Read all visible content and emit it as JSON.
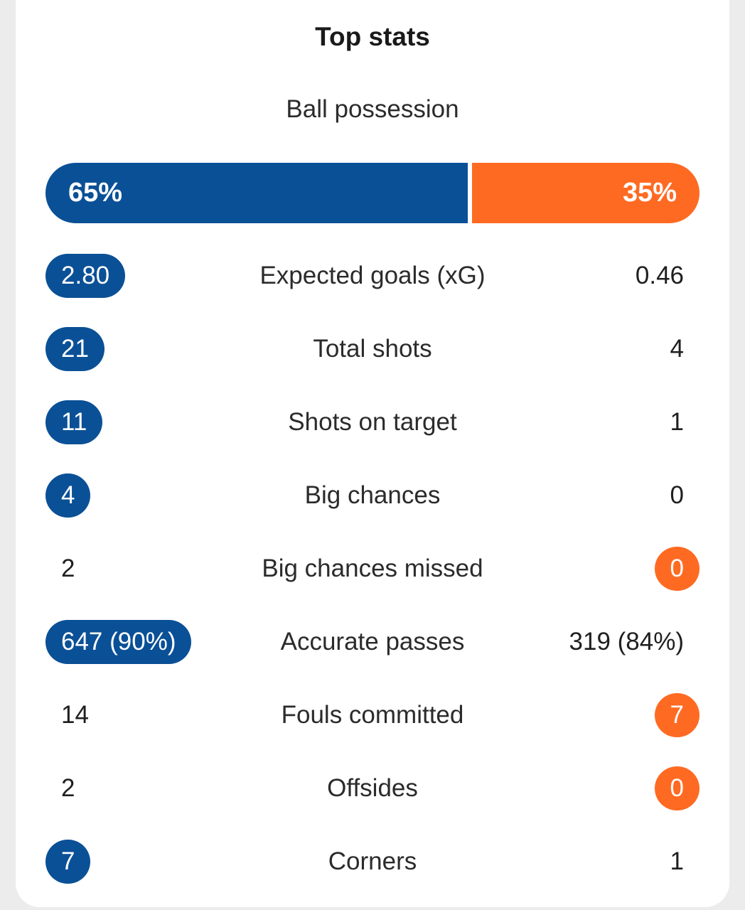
{
  "title": "Top stats",
  "possession": {
    "label": "Ball possession",
    "home": "65%",
    "away": "35%",
    "home_fraction": 0.65
  },
  "colors": {
    "home": "#0a5096",
    "away": "#ff6a22"
  },
  "stats": [
    {
      "label": "Expected goals (xG)",
      "home": "2.80",
      "away": "0.46",
      "highlight": "home"
    },
    {
      "label": "Total shots",
      "home": "21",
      "away": "4",
      "highlight": "home"
    },
    {
      "label": "Shots on target",
      "home": "11",
      "away": "1",
      "highlight": "home"
    },
    {
      "label": "Big chances",
      "home": "4",
      "away": "0",
      "highlight": "home"
    },
    {
      "label": "Big chances missed",
      "home": "2",
      "away": "0",
      "highlight": "away"
    },
    {
      "label": "Accurate passes",
      "home": "647 (90%)",
      "away": "319 (84%)",
      "highlight": "home"
    },
    {
      "label": "Fouls committed",
      "home": "14",
      "away": "7",
      "highlight": "away"
    },
    {
      "label": "Offsides",
      "home": "2",
      "away": "0",
      "highlight": "away"
    },
    {
      "label": "Corners",
      "home": "7",
      "away": "1",
      "highlight": "home"
    }
  ]
}
